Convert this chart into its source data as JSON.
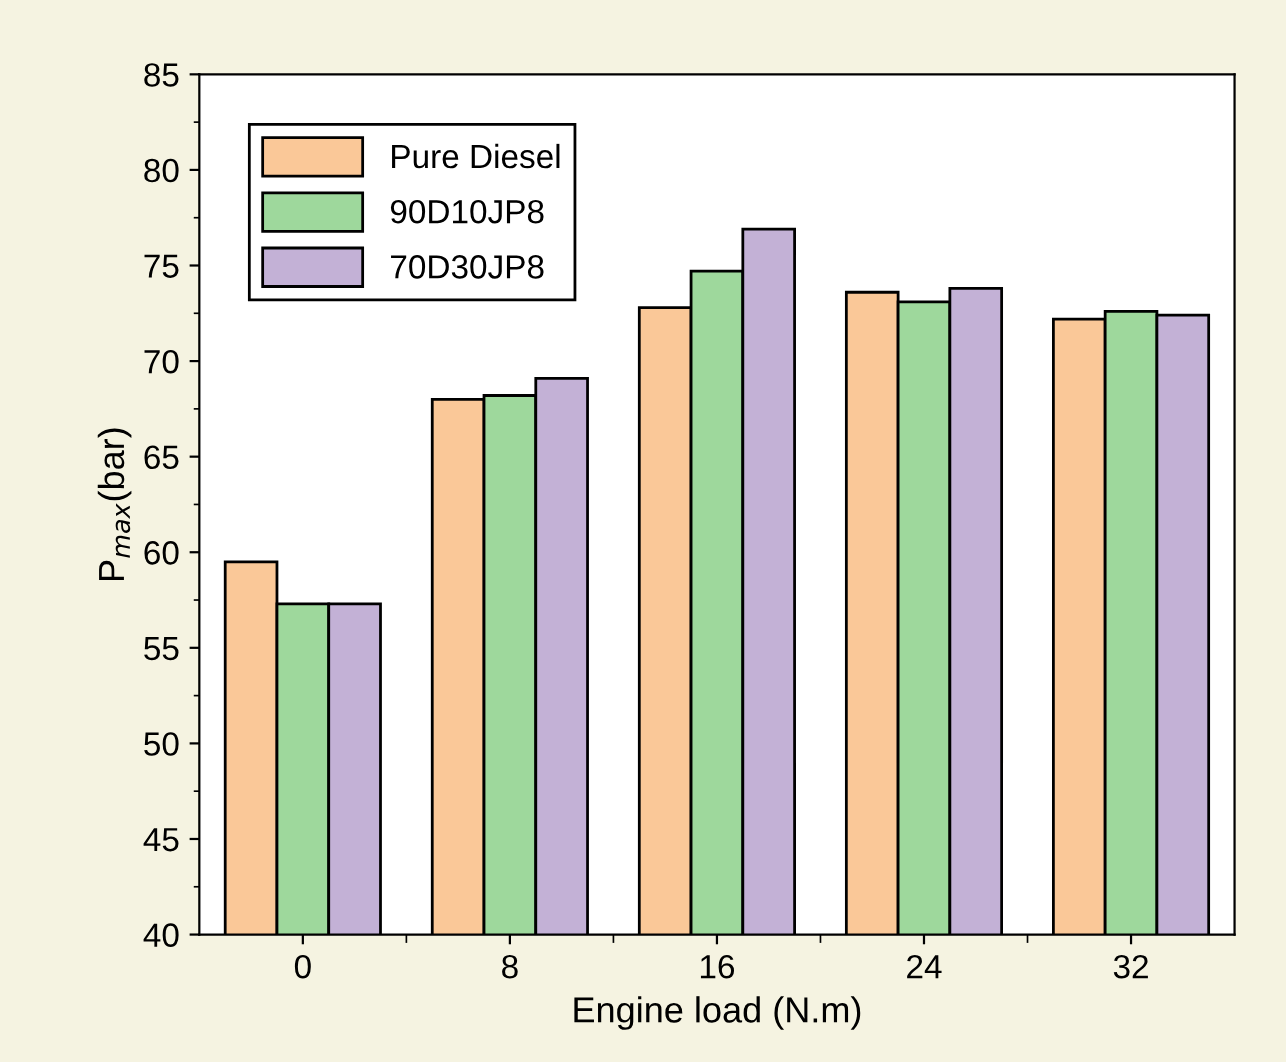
{
  "chart_data": {
    "type": "bar",
    "xlabel": "Engine load (N.m)",
    "ylabel": "P$_{max}$(bar)",
    "categories": [
      "0",
      "8",
      "16",
      "24",
      "32"
    ],
    "series": [
      {
        "name": "Pure Diesel",
        "color": "#fac898",
        "values": [
          59.5,
          68.0,
          72.8,
          73.6,
          72.2
        ]
      },
      {
        "name": "90D10JP8",
        "color": "#9ed89c",
        "values": [
          57.3,
          68.2,
          74.7,
          73.1,
          72.6
        ]
      },
      {
        "name": "70D30JP8",
        "color": "#c3b1d6",
        "values": [
          57.3,
          69.1,
          76.9,
          73.8,
          72.4
        ]
      }
    ],
    "ylim": [
      40,
      85
    ],
    "yticks": [
      40,
      45,
      50,
      55,
      60,
      65,
      70,
      75,
      80,
      85
    ],
    "legend": "top left",
    "grid": false
  }
}
